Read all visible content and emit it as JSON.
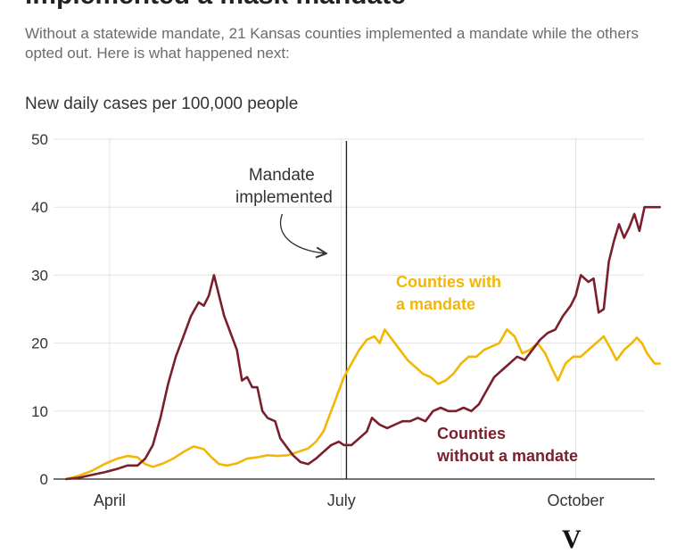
{
  "header": {
    "title": "implemented a mask mandate",
    "subtitle": "Without a statewide mandate, 21 Kansas counties implemented a mandate while the others opted out. Here is what happened next:"
  },
  "brand": {
    "logo_text": "V"
  },
  "colors": {
    "with_mandate": "#f2b705",
    "without_mandate": "#7a1f2b",
    "grid": "#e3e3e3",
    "axis": "#222222"
  },
  "chart_data": {
    "type": "line",
    "ylabel": "New daily cases per 100,000 people",
    "ylim": [
      0,
      50
    ],
    "yticks": [
      0,
      10,
      20,
      30,
      40,
      50
    ],
    "xlim": [
      "2020-03-10",
      "2020-11-01"
    ],
    "xticks": [
      {
        "label": "April",
        "date": "2020-04-01"
      },
      {
        "label": "July",
        "date": "2020-07-01"
      },
      {
        "label": "October",
        "date": "2020-10-01"
      }
    ],
    "grid": true,
    "annotation": {
      "lines": [
        "Mandate",
        "implemented"
      ],
      "date": "2020-07-03"
    },
    "series": [
      {
        "name": "Counties with a mandate",
        "label_lines": [
          "Counties with",
          "a mandate"
        ],
        "color": "#f2b705",
        "points": [
          [
            "2020-03-15",
            0
          ],
          [
            "2020-03-20",
            0.5
          ],
          [
            "2020-03-25",
            1.2
          ],
          [
            "2020-03-30",
            2.2
          ],
          [
            "2020-04-04",
            3
          ],
          [
            "2020-04-08",
            3.4
          ],
          [
            "2020-04-12",
            3.2
          ],
          [
            "2020-04-15",
            2.2
          ],
          [
            "2020-04-18",
            1.8
          ],
          [
            "2020-04-22",
            2.3
          ],
          [
            "2020-04-26",
            3
          ],
          [
            "2020-04-30",
            4
          ],
          [
            "2020-05-04",
            4.8
          ],
          [
            "2020-05-08",
            4.4
          ],
          [
            "2020-05-11",
            3.2
          ],
          [
            "2020-05-14",
            2.2
          ],
          [
            "2020-05-17",
            2
          ],
          [
            "2020-05-21",
            2.3
          ],
          [
            "2020-05-25",
            3
          ],
          [
            "2020-05-29",
            3.2
          ],
          [
            "2020-06-02",
            3.5
          ],
          [
            "2020-06-06",
            3.4
          ],
          [
            "2020-06-10",
            3.5
          ],
          [
            "2020-06-14",
            4
          ],
          [
            "2020-06-18",
            4.5
          ],
          [
            "2020-06-21",
            5.5
          ],
          [
            "2020-06-24",
            7
          ],
          [
            "2020-06-26",
            9
          ],
          [
            "2020-06-28",
            11
          ],
          [
            "2020-06-30",
            13
          ],
          [
            "2020-07-02",
            15
          ],
          [
            "2020-07-05",
            17
          ],
          [
            "2020-07-08",
            19
          ],
          [
            "2020-07-11",
            20.5
          ],
          [
            "2020-07-14",
            21
          ],
          [
            "2020-07-16",
            20
          ],
          [
            "2020-07-18",
            22
          ],
          [
            "2020-07-21",
            20.5
          ],
          [
            "2020-07-24",
            19
          ],
          [
            "2020-07-27",
            17.5
          ],
          [
            "2020-07-30",
            16.5
          ],
          [
            "2020-08-02",
            15.5
          ],
          [
            "2020-08-05",
            15
          ],
          [
            "2020-08-08",
            14
          ],
          [
            "2020-08-11",
            14.5
          ],
          [
            "2020-08-14",
            15.5
          ],
          [
            "2020-08-17",
            17
          ],
          [
            "2020-08-20",
            18
          ],
          [
            "2020-08-23",
            18
          ],
          [
            "2020-08-26",
            19
          ],
          [
            "2020-08-29",
            19.5
          ],
          [
            "2020-09-01",
            20
          ],
          [
            "2020-09-04",
            22
          ],
          [
            "2020-09-07",
            21
          ],
          [
            "2020-09-10",
            18.5
          ],
          [
            "2020-09-13",
            19
          ],
          [
            "2020-09-16",
            20
          ],
          [
            "2020-09-19",
            18.5
          ],
          [
            "2020-09-22",
            16
          ],
          [
            "2020-09-24",
            14.5
          ],
          [
            "2020-09-27",
            17
          ],
          [
            "2020-09-30",
            18
          ],
          [
            "2020-10-03",
            18
          ],
          [
            "2020-10-06",
            19
          ],
          [
            "2020-10-09",
            20
          ],
          [
            "2020-10-12",
            21
          ],
          [
            "2020-10-15",
            19
          ],
          [
            "2020-10-17",
            17.5
          ],
          [
            "2020-10-20",
            19
          ],
          [
            "2020-10-23",
            20
          ],
          [
            "2020-10-25",
            20.8
          ],
          [
            "2020-10-27",
            20
          ],
          [
            "2020-10-29",
            18.5
          ],
          [
            "2020-11-01",
            17
          ],
          [
            "2020-11-03",
            17
          ]
        ]
      },
      {
        "name": "Counties without a mandate",
        "label_lines": [
          "Counties",
          "without a mandate"
        ],
        "color": "#7a1f2b",
        "points": [
          [
            "2020-03-15",
            0
          ],
          [
            "2020-03-20",
            0.2
          ],
          [
            "2020-03-25",
            0.6
          ],
          [
            "2020-03-30",
            1
          ],
          [
            "2020-04-04",
            1.5
          ],
          [
            "2020-04-08",
            2
          ],
          [
            "2020-04-12",
            2
          ],
          [
            "2020-04-15",
            3
          ],
          [
            "2020-04-18",
            5
          ],
          [
            "2020-04-21",
            9
          ],
          [
            "2020-04-24",
            14
          ],
          [
            "2020-04-27",
            18
          ],
          [
            "2020-04-30",
            21
          ],
          [
            "2020-05-03",
            24
          ],
          [
            "2020-05-06",
            26
          ],
          [
            "2020-05-08",
            25.5
          ],
          [
            "2020-05-10",
            27
          ],
          [
            "2020-05-12",
            30
          ],
          [
            "2020-05-14",
            27
          ],
          [
            "2020-05-16",
            24
          ],
          [
            "2020-05-19",
            21
          ],
          [
            "2020-05-21",
            19
          ],
          [
            "2020-05-23",
            14.5
          ],
          [
            "2020-05-25",
            15
          ],
          [
            "2020-05-27",
            13.5
          ],
          [
            "2020-05-29",
            13.5
          ],
          [
            "2020-05-31",
            10
          ],
          [
            "2020-06-02",
            9
          ],
          [
            "2020-06-05",
            8.5
          ],
          [
            "2020-06-07",
            6
          ],
          [
            "2020-06-10",
            4.5
          ],
          [
            "2020-06-12",
            3.5
          ],
          [
            "2020-06-15",
            2.5
          ],
          [
            "2020-06-18",
            2.2
          ],
          [
            "2020-06-21",
            3
          ],
          [
            "2020-06-24",
            4
          ],
          [
            "2020-06-27",
            5
          ],
          [
            "2020-06-30",
            5.5
          ],
          [
            "2020-07-02",
            5
          ],
          [
            "2020-07-05",
            5
          ],
          [
            "2020-07-08",
            6
          ],
          [
            "2020-07-11",
            7
          ],
          [
            "2020-07-13",
            9
          ],
          [
            "2020-07-16",
            8
          ],
          [
            "2020-07-19",
            7.5
          ],
          [
            "2020-07-22",
            8
          ],
          [
            "2020-07-25",
            8.5
          ],
          [
            "2020-07-28",
            8.5
          ],
          [
            "2020-07-31",
            9
          ],
          [
            "2020-08-03",
            8.5
          ],
          [
            "2020-08-06",
            10
          ],
          [
            "2020-08-09",
            10.5
          ],
          [
            "2020-08-12",
            10
          ],
          [
            "2020-08-15",
            10
          ],
          [
            "2020-08-18",
            10.5
          ],
          [
            "2020-08-21",
            10
          ],
          [
            "2020-08-24",
            11
          ],
          [
            "2020-08-27",
            13
          ],
          [
            "2020-08-30",
            15
          ],
          [
            "2020-09-02",
            16
          ],
          [
            "2020-09-05",
            17
          ],
          [
            "2020-09-08",
            18
          ],
          [
            "2020-09-11",
            17.5
          ],
          [
            "2020-09-14",
            19
          ],
          [
            "2020-09-17",
            20.5
          ],
          [
            "2020-09-20",
            21.5
          ],
          [
            "2020-09-23",
            22
          ],
          [
            "2020-09-26",
            24
          ],
          [
            "2020-09-29",
            25.5
          ],
          [
            "2020-10-01",
            27
          ],
          [
            "2020-10-03",
            30
          ],
          [
            "2020-10-06",
            29
          ],
          [
            "2020-10-08",
            29.5
          ],
          [
            "2020-10-10",
            24.5
          ],
          [
            "2020-10-12",
            25
          ],
          [
            "2020-10-14",
            32
          ],
          [
            "2020-10-16",
            35
          ],
          [
            "2020-10-18",
            37.5
          ],
          [
            "2020-10-20",
            35.5
          ],
          [
            "2020-10-22",
            37
          ],
          [
            "2020-10-24",
            39
          ],
          [
            "2020-10-26",
            36.5
          ],
          [
            "2020-10-28",
            40
          ],
          [
            "2020-11-03",
            40
          ]
        ]
      }
    ]
  }
}
